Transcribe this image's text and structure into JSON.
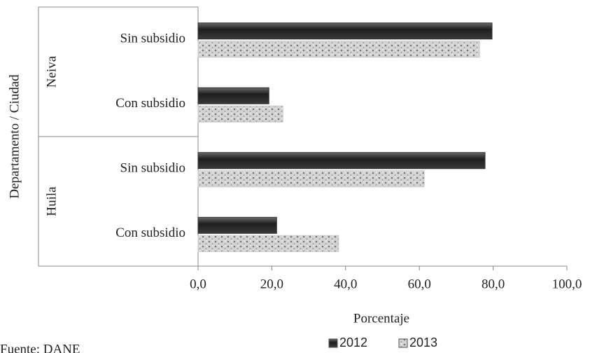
{
  "chart_data": {
    "type": "bar",
    "orientation": "horizontal",
    "groups": [
      {
        "name": "Neiva",
        "categories": [
          "Sin subsidio",
          "Con subsidio"
        ]
      },
      {
        "name": "Huila",
        "categories": [
          "Sin subsidio",
          "Con subsidio"
        ]
      }
    ],
    "series": [
      {
        "name": "2012",
        "color": "#2e2e2e",
        "values": [
          79.7,
          19.2,
          77.8,
          21.3
        ]
      },
      {
        "name": "2013",
        "color": "#c9c9c9",
        "values": [
          76.3,
          23.0,
          61.3,
          38.1
        ]
      }
    ],
    "xlim": [
      0,
      100
    ],
    "xticks": [
      {
        "value": 0,
        "label": "0,0"
      },
      {
        "value": 20,
        "label": "20,0"
      },
      {
        "value": 40,
        "label": "40,0"
      },
      {
        "value": 60,
        "label": "60,0"
      },
      {
        "value": 80,
        "label": "80,0"
      },
      {
        "value": 100,
        "label": "100,0"
      }
    ],
    "xlabel": "Porcentaje",
    "ylabel": "Departamento / Ciudad",
    "source": "Fuente: DANE",
    "legend": "bottom"
  }
}
